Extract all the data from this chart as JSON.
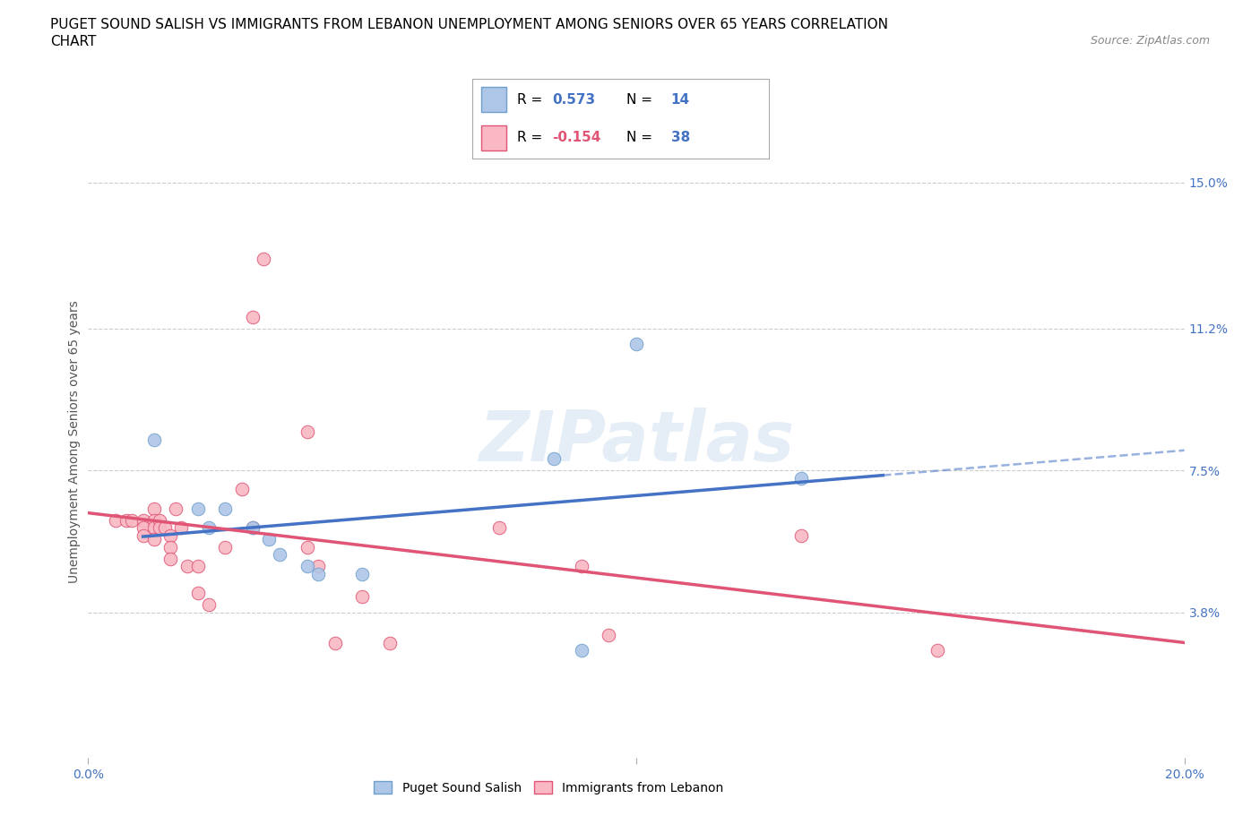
{
  "title_line1": "PUGET SOUND SALISH VS IMMIGRANTS FROM LEBANON UNEMPLOYMENT AMONG SENIORS OVER 65 YEARS CORRELATION",
  "title_line2": "CHART",
  "source": "Source: ZipAtlas.com",
  "ylabel": "Unemployment Among Seniors over 65 years",
  "xmin": 0.0,
  "xmax": 0.2,
  "ymin": 0.0,
  "ymax": 0.165,
  "ytick_labels": [
    "3.8%",
    "7.5%",
    "11.2%",
    "15.0%"
  ],
  "ytick_values": [
    0.038,
    0.075,
    0.112,
    0.15
  ],
  "watermark": "ZIPatlas",
  "series1_name": "Puget Sound Salish",
  "series1_color": "#aec6e8",
  "series1_edge_color": "#6fa0cc",
  "series1_line_color": "#4472c4",
  "series1_points": [
    [
      0.012,
      0.083
    ],
    [
      0.02,
      0.065
    ],
    [
      0.022,
      0.06
    ],
    [
      0.025,
      0.065
    ],
    [
      0.03,
      0.06
    ],
    [
      0.033,
      0.057
    ],
    [
      0.035,
      0.053
    ],
    [
      0.04,
      0.05
    ],
    [
      0.042,
      0.048
    ],
    [
      0.05,
      0.048
    ],
    [
      0.085,
      0.078
    ],
    [
      0.1,
      0.108
    ],
    [
      0.13,
      0.073
    ],
    [
      0.09,
      0.028
    ]
  ],
  "series2_name": "Immigrants from Lebanon",
  "series2_color": "#f9b8c4",
  "series2_edge_color": "#e05575",
  "series2_line_color": "#e05575",
  "series2_points": [
    [
      0.005,
      0.062
    ],
    [
      0.007,
      0.062
    ],
    [
      0.008,
      0.062
    ],
    [
      0.01,
      0.062
    ],
    [
      0.01,
      0.06
    ],
    [
      0.01,
      0.058
    ],
    [
      0.012,
      0.065
    ],
    [
      0.012,
      0.062
    ],
    [
      0.012,
      0.06
    ],
    [
      0.012,
      0.057
    ],
    [
      0.013,
      0.062
    ],
    [
      0.013,
      0.06
    ],
    [
      0.014,
      0.06
    ],
    [
      0.015,
      0.058
    ],
    [
      0.015,
      0.055
    ],
    [
      0.015,
      0.052
    ],
    [
      0.016,
      0.065
    ],
    [
      0.017,
      0.06
    ],
    [
      0.018,
      0.05
    ],
    [
      0.02,
      0.05
    ],
    [
      0.02,
      0.043
    ],
    [
      0.022,
      0.04
    ],
    [
      0.025,
      0.055
    ],
    [
      0.028,
      0.07
    ],
    [
      0.03,
      0.06
    ],
    [
      0.03,
      0.115
    ],
    [
      0.032,
      0.13
    ],
    [
      0.04,
      0.085
    ],
    [
      0.04,
      0.055
    ],
    [
      0.042,
      0.05
    ],
    [
      0.045,
      0.03
    ],
    [
      0.05,
      0.042
    ],
    [
      0.055,
      0.03
    ],
    [
      0.075,
      0.06
    ],
    [
      0.09,
      0.05
    ],
    [
      0.095,
      0.032
    ],
    [
      0.13,
      0.058
    ],
    [
      0.155,
      0.028
    ]
  ],
  "background_color": "#ffffff",
  "grid_color": "#cccccc",
  "title_fontsize": 11,
  "axis_label_fontsize": 10,
  "tick_fontsize": 10
}
